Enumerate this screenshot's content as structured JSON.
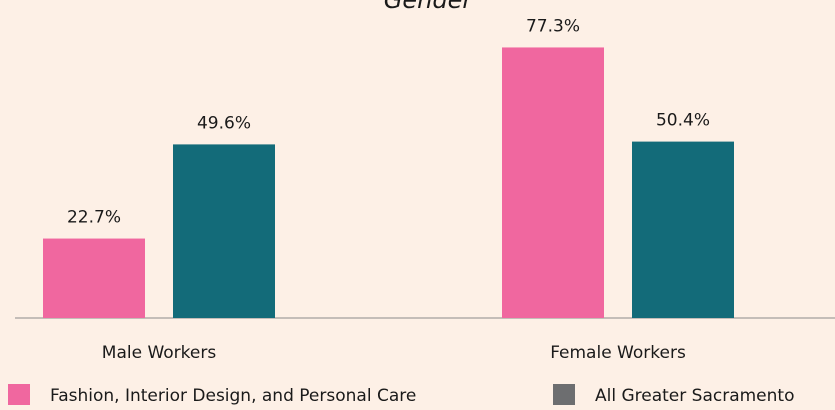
{
  "chart_data": {
    "type": "bar",
    "title": "Gender",
    "categories": [
      "Male Workers",
      "Female Workers"
    ],
    "series": [
      {
        "name": "Fashion, Interior Design, and Personal Care",
        "color": "#f0679f",
        "legend_color": "#f0679f",
        "values": [
          22.7,
          77.3
        ],
        "value_labels": [
          "22.7%",
          "77.3%"
        ]
      },
      {
        "name": "All Greater Sacramento",
        "color": "#136b79",
        "legend_color": "#6d6e70",
        "values": [
          49.6,
          50.4
        ],
        "value_labels": [
          "49.6%",
          "50.4%"
        ]
      }
    ],
    "ylim": [
      0,
      80
    ]
  }
}
